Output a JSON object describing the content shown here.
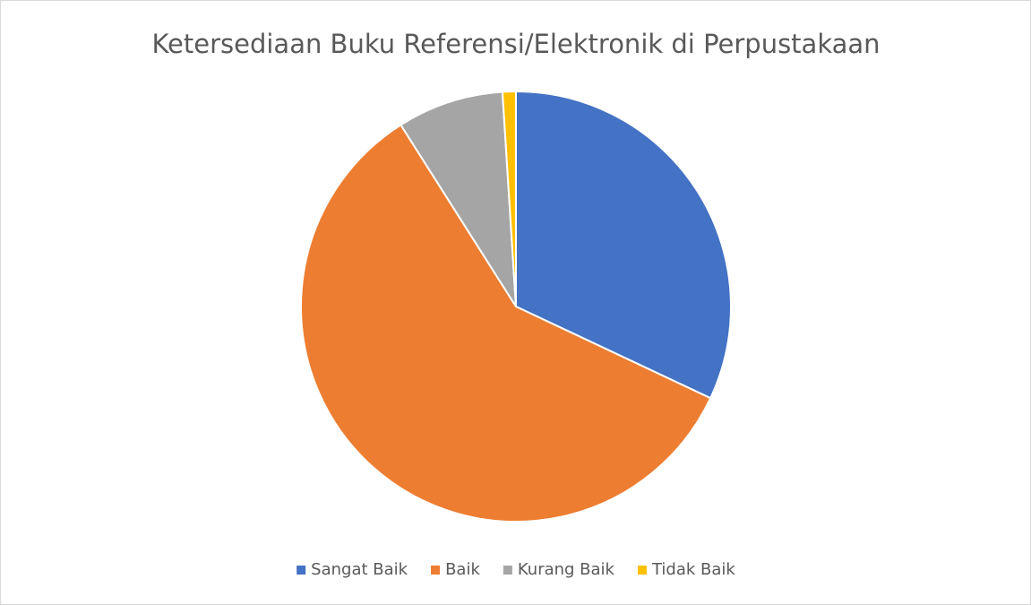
{
  "chart_data": {
    "type": "pie",
    "title": "Ketersediaan Buku Referensi/Elektronik di Perpustakaan",
    "categories": [
      "Sangat Baik",
      "Baik",
      "Kurang Baik",
      "Tidak Baik"
    ],
    "values": [
      32,
      59,
      8,
      1
    ],
    "colors": [
      "#4472c4",
      "#ed7d31",
      "#a5a5a5",
      "#ffc000"
    ],
    "legend": "bottom"
  }
}
